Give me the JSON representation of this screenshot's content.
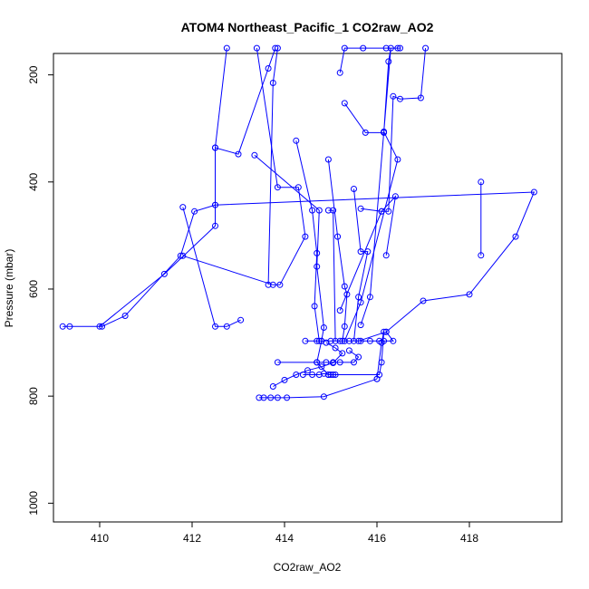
{
  "chart_data": {
    "type": "line",
    "title": "ATOM4 Northeast_Pacific_1 CO2raw_AO2",
    "xlabel": "CO2raw_AO2",
    "ylabel": "Pressure (mbar)",
    "xlim": [
      409,
      420
    ],
    "ylim": [
      1035,
      160
    ],
    "y_reversed": true,
    "x_ticks": [
      410,
      412,
      414,
      416,
      418
    ],
    "y_ticks": [
      200,
      400,
      600,
      800,
      1000
    ],
    "grid": false,
    "legend": "none",
    "color": "#0000ff",
    "series": [
      {
        "x": [
          409.2,
          409.35,
          410.05,
          410.55,
          411.75,
          412.05,
          412.5,
          412.5,
          413.0,
          413.65,
          413.8
        ],
        "y": [
          670,
          670,
          670,
          650,
          538,
          455,
          443,
          336,
          348,
          188,
          150
        ]
      },
      {
        "x": [
          410.0,
          411.4,
          412.5,
          412.5,
          412.75
        ],
        "y": [
          670,
          572,
          482,
          336,
          150
        ]
      },
      {
        "x": [
          411.8,
          412.5,
          412.75,
          413.05
        ],
        "y": [
          447,
          670,
          670,
          658
        ]
      },
      {
        "x": [
          411.8,
          413.75,
          413.9,
          414.45,
          414.3,
          413.85,
          413.4
        ],
        "y": [
          538,
          592,
          592,
          502,
          410,
          410,
          150
        ]
      },
      {
        "x": [
          413.65,
          413.75,
          413.85
        ],
        "y": [
          592,
          215,
          150
        ]
      },
      {
        "x": [
          413.35,
          414.75,
          414.7,
          414.85,
          414.8,
          414.7,
          414.95,
          415.05,
          414.95
        ],
        "y": [
          350,
          453,
          558,
          672,
          697,
          737,
          760,
          760,
          760
        ]
      },
      {
        "x": [
          412.5,
          419.4,
          419.0,
          418.0,
          417.0,
          416.2,
          415.6
        ],
        "y": [
          443,
          419,
          502,
          610,
          622,
          680,
          697
        ]
      },
      {
        "x": [
          414.25,
          414.6,
          414.7,
          414.65,
          414.75
        ],
        "y": [
          323,
          453,
          533,
          632,
          697
        ]
      },
      {
        "x": [
          414.95,
          415.15,
          415.3,
          415.35,
          415.3,
          415.25
        ],
        "y": [
          358,
          502,
          595,
          610,
          670,
          697
        ]
      },
      {
        "x": [
          414.95,
          415.05,
          415.1
        ],
        "y": [
          453,
          453,
          697
        ]
      },
      {
        "x": [
          415.2,
          415.3,
          415.7,
          416.2,
          416.45,
          416.5
        ],
        "y": [
          196,
          150,
          150,
          150,
          150,
          150
        ]
      },
      {
        "x": [
          415.3,
          415.75,
          416.15,
          416.25,
          416.3,
          415.85,
          415.65
        ],
        "y": [
          253,
          308,
          308,
          175,
          150,
          615,
          667
        ]
      },
      {
        "x": [
          415.5,
          415.65,
          415.8,
          415.6,
          415.5
        ],
        "y": [
          413,
          530,
          530,
          615,
          697
        ]
      },
      {
        "x": [
          415.65,
          416.1,
          416.25,
          416.35,
          416.5,
          416.95,
          417.05
        ],
        "y": [
          450,
          455,
          455,
          240,
          245,
          243,
          150
        ]
      },
      {
        "x": [
          416.15,
          416.45,
          415.65,
          415.3
        ],
        "y": [
          306,
          358,
          625,
          697
        ]
      },
      {
        "x": [
          416.2,
          416.4,
          416.1,
          415.2
        ],
        "y": [
          537,
          427,
          455,
          640
        ]
      },
      {
        "x": [
          418.25,
          418.25
        ],
        "y": [
          400,
          537
        ]
      },
      {
        "x": [
          414.45,
          414.7,
          414.8,
          415.0,
          415.2,
          415.4,
          415.65,
          415.85,
          416.05,
          416.15,
          416.35,
          416.2
        ],
        "y": [
          697,
          697,
          697,
          697,
          697,
          697,
          697,
          697,
          697,
          697,
          697,
          680
        ]
      },
      {
        "x": [
          413.85,
          414.7,
          414.9,
          415.05,
          415.2,
          415.5,
          415.6,
          415.4
        ],
        "y": [
          737,
          737,
          737,
          737,
          737,
          737,
          727,
          715
        ]
      },
      {
        "x": [
          414.4,
          414.6,
          414.75,
          414.85,
          415.0,
          415.1,
          416.05,
          416.1,
          416.15,
          416.1,
          416.0
        ],
        "y": [
          760,
          760,
          760,
          758,
          760,
          760,
          760,
          737,
          680,
          700,
          768
        ]
      },
      {
        "x": [
          413.45,
          413.55,
          413.7,
          413.85,
          414.05,
          414.85,
          416.0
        ],
        "y": [
          803,
          803,
          803,
          803,
          803,
          801,
          768
        ]
      },
      {
        "x": [
          413.75,
          414.0,
          414.25,
          414.5,
          414.8,
          415.05,
          415.25,
          415.1,
          414.9
        ],
        "y": [
          782,
          770,
          760,
          752,
          745,
          738,
          720,
          710,
          700
        ]
      }
    ]
  }
}
